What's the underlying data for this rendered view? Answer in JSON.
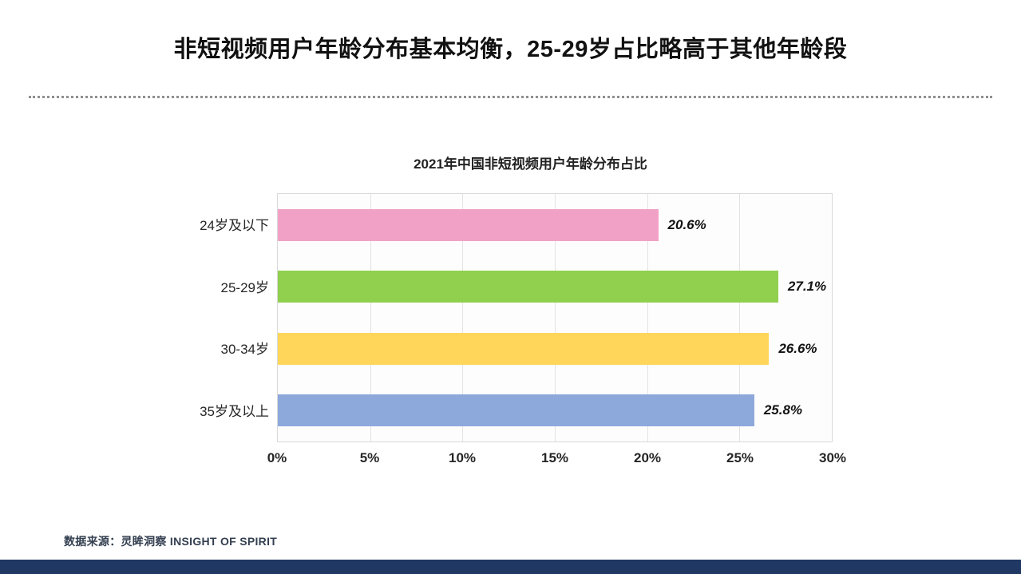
{
  "page": {
    "title": "非短视频用户年龄分布基本均衡，25-29岁占比略高于其他年龄段",
    "source_note": "数据来源：灵眸洞察 INSIGHT OF SPIRIT"
  },
  "colors": {
    "bottom_bar": "#1F3864",
    "source_text": "#333F50"
  },
  "chart_data": {
    "type": "bar",
    "orientation": "horizontal",
    "title": "2021年中国非短视频用户年龄分布占比",
    "categories": [
      "24岁及以下",
      "25-29岁",
      "30-34岁",
      "35岁及以上"
    ],
    "values": [
      20.6,
      27.1,
      26.6,
      25.8
    ],
    "value_labels": [
      "20.6%",
      "27.1%",
      "26.6%",
      "25.8%"
    ],
    "bar_colors": [
      "#F2A1C6",
      "#90D04E",
      "#FFD65A",
      "#8DA9DC"
    ],
    "x_ticks": [
      "0%",
      "5%",
      "10%",
      "15%",
      "20%",
      "25%",
      "30%"
    ],
    "xlim": [
      0,
      30
    ],
    "grid": true,
    "legend": false
  }
}
